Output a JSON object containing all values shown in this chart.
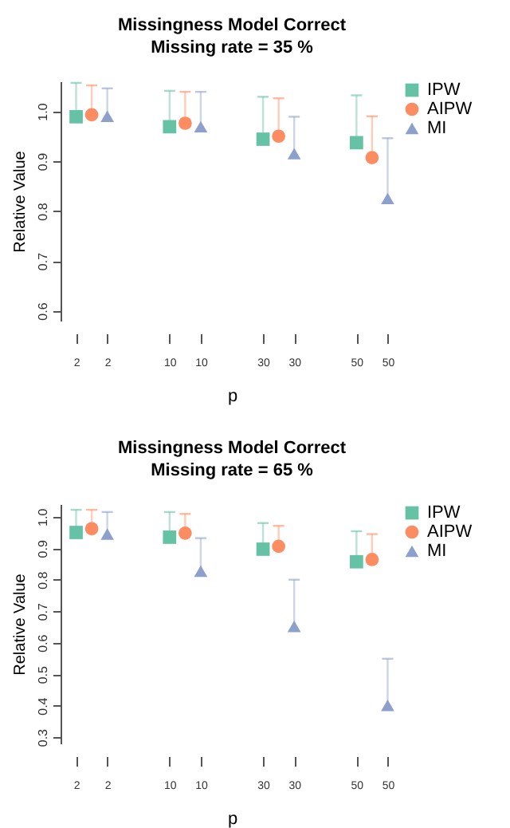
{
  "chart_data": [
    {
      "type": "scatter",
      "title": "Missingness Model Correct",
      "subtitle": "Missing rate =  35 %",
      "xlabel": "p",
      "ylabel": "Relative Value",
      "legend": "top right",
      "ylim": [
        0.58,
        1.06
      ],
      "yticks": [
        0.6,
        0.7,
        0.8,
        0.9,
        {
          "value": 1.0,
          "label": "1.0"
        }
      ],
      "categories": [
        "2",
        null,
        "2",
        null,
        null,
        null,
        "10",
        null,
        "10",
        null,
        null,
        null,
        "30",
        null,
        "30",
        null,
        null,
        null,
        "50",
        null,
        "50"
      ],
      "series": [
        {
          "name": "IPW",
          "color": "#66c2a5",
          "marker": "square",
          "values": [
            0.989,
            null,
            null,
            null,
            null,
            null,
            0.969,
            null,
            null,
            null,
            null,
            null,
            0.944,
            null,
            null,
            null,
            null,
            null,
            0.937,
            null,
            null
          ],
          "errors": [
            [
              0.989,
              1.057
            ],
            null,
            null,
            null,
            null,
            null,
            [
              0.969,
              1.041
            ],
            null,
            null,
            null,
            null,
            null,
            [
              0.944,
              1.029
            ],
            null,
            null,
            null,
            null,
            null,
            [
              0.937,
              1.032
            ],
            null,
            null
          ]
        },
        {
          "name": "AIPW",
          "color": "#fc8d62",
          "marker": "circle",
          "values": [
            null,
            0.993,
            null,
            null,
            null,
            null,
            null,
            0.976,
            null,
            null,
            null,
            null,
            null,
            0.95,
            null,
            null,
            null,
            null,
            null,
            0.907,
            null
          ],
          "errors": [
            null,
            [
              0.993,
              1.052
            ],
            null,
            null,
            null,
            null,
            null,
            [
              0.976,
              1.039
            ],
            null,
            null,
            null,
            null,
            null,
            [
              0.95,
              1.026
            ],
            null,
            null,
            null,
            null,
            null,
            [
              0.907,
              0.99
            ],
            null
          ]
        },
        {
          "name": "MI",
          "color": "#8da0cb",
          "marker": "triangle",
          "values": [
            null,
            null,
            0.99,
            null,
            null,
            null,
            null,
            null,
            0.969,
            null,
            null,
            null,
            null,
            null,
            0.915,
            null,
            null,
            null,
            null,
            null,
            0.825
          ],
          "errors": [
            null,
            null,
            [
              0.99,
              1.046
            ],
            null,
            null,
            null,
            null,
            null,
            [
              0.969,
              1.039
            ],
            null,
            null,
            null,
            null,
            null,
            [
              0.915,
              0.989
            ],
            null,
            null,
            null,
            null,
            null,
            [
              0.825,
              0.946
            ]
          ]
        }
      ]
    },
    {
      "type": "scatter",
      "title": "Missingness Model Correct",
      "subtitle": "Missing rate =  65 %",
      "xlabel": "p",
      "ylabel": "Relative Value",
      "legend": "top right",
      "ylim": [
        0.28,
        1.04
      ],
      "yticks": [
        0.3,
        0.4,
        0.5,
        0.6,
        0.7,
        0.8,
        0.9,
        {
          "value": 1.0,
          "label": "1.0"
        }
      ],
      "categories": [
        "2",
        null,
        "2",
        null,
        null,
        null,
        "10",
        null,
        "10",
        null,
        null,
        null,
        "30",
        null,
        "30",
        null,
        null,
        null,
        "50",
        null,
        "50"
      ],
      "series": [
        {
          "name": "IPW",
          "color": "#66c2a5",
          "marker": "square",
          "values": [
            0.95,
            null,
            null,
            null,
            null,
            null,
            0.935,
            null,
            null,
            null,
            null,
            null,
            0.897,
            null,
            null,
            null,
            null,
            null,
            0.857,
            null,
            null
          ],
          "errors": [
            [
              0.95,
              1.022
            ],
            null,
            null,
            null,
            null,
            null,
            [
              0.935,
              1.015
            ],
            null,
            null,
            null,
            null,
            null,
            [
              0.897,
              0.98
            ],
            null,
            null,
            null,
            null,
            null,
            [
              0.857,
              0.954
            ],
            null,
            null
          ]
        },
        {
          "name": "AIPW",
          "color": "#fc8d62",
          "marker": "circle",
          "values": [
            null,
            0.962,
            null,
            null,
            null,
            null,
            null,
            0.948,
            null,
            null,
            null,
            null,
            null,
            0.906,
            null,
            null,
            null,
            null,
            null,
            0.864,
            null
          ],
          "errors": [
            null,
            [
              0.962,
              1.022
            ],
            null,
            null,
            null,
            null,
            null,
            [
              0.948,
              1.009
            ],
            null,
            null,
            null,
            null,
            null,
            [
              0.906,
              0.971
            ],
            null,
            null,
            null,
            null,
            null,
            [
              0.864,
              0.945
            ],
            null
          ]
        },
        {
          "name": "MI",
          "color": "#8da0cb",
          "marker": "triangle",
          "values": [
            null,
            null,
            0.945,
            null,
            null,
            null,
            null,
            null,
            0.827,
            null,
            null,
            null,
            null,
            null,
            0.652,
            null,
            null,
            null,
            null,
            null,
            0.401
          ],
          "errors": [
            null,
            null,
            [
              0.945,
              1.015
            ],
            null,
            null,
            null,
            null,
            null,
            [
              0.827,
              0.932
            ],
            null,
            null,
            null,
            null,
            null,
            [
              0.652,
              0.8
            ],
            null,
            null,
            null,
            null,
            null,
            [
              0.401,
              0.549
            ]
          ]
        }
      ]
    }
  ]
}
